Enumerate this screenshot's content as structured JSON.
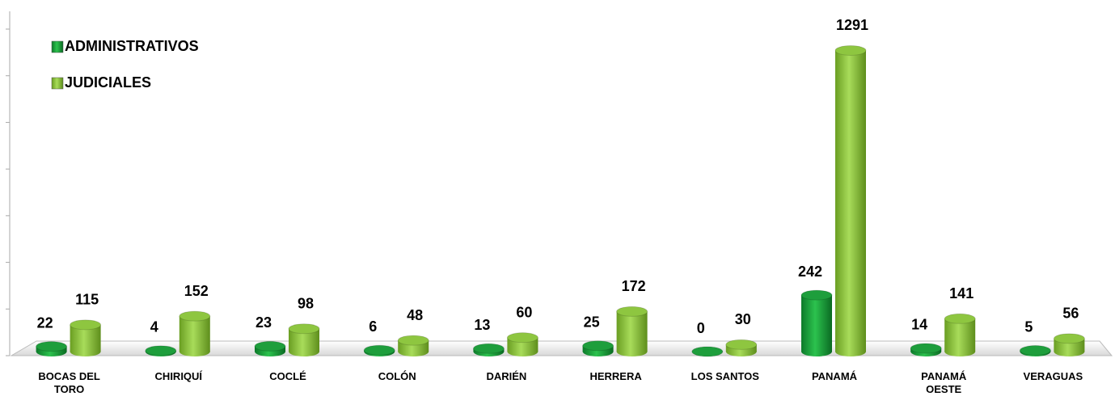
{
  "chart_data": {
    "type": "bar",
    "categories": [
      "BOCAS DEL TORO",
      "CHIRIQUÍ",
      "COCLÉ",
      "COLÓN",
      "DARIÉN",
      "HERRERA",
      "LOS SANTOS",
      "PANAMÁ",
      "PANAMÁ OESTE",
      "VERAGUAS"
    ],
    "series": [
      {
        "name": "ADMINISTRATIVOS",
        "color": "#1e9e3c",
        "values": [
          22,
          4,
          23,
          6,
          13,
          25,
          0,
          242,
          14,
          5
        ]
      },
      {
        "name": "JUDICIALES",
        "color": "#8ec640",
        "values": [
          115,
          152,
          98,
          48,
          60,
          172,
          30,
          1291,
          141,
          56
        ]
      }
    ],
    "ylim": [
      0,
      1400
    ],
    "yticks": [
      0,
      200,
      400,
      600,
      800,
      1000,
      1200,
      1400
    ],
    "legend": "top-left"
  }
}
